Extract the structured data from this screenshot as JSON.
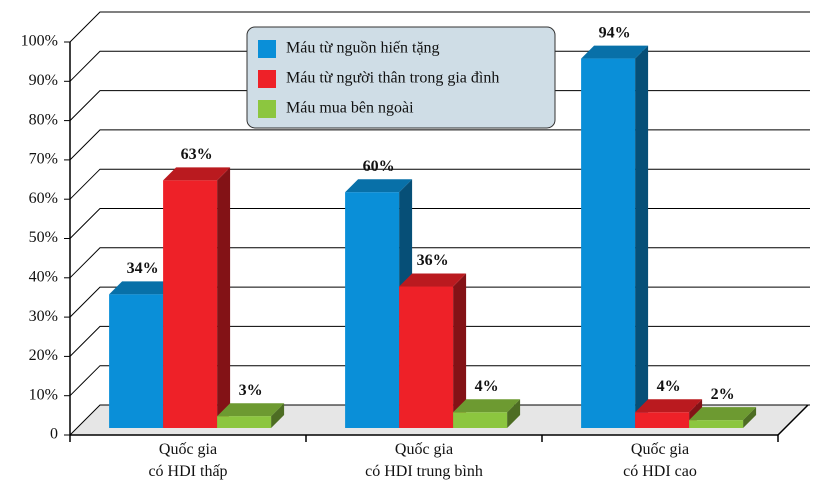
{
  "chart_data": {
    "type": "bar3d",
    "categories": [
      "Quốc gia\ncó HDI thấp",
      "Quốc gia\ncó HDI trung bình",
      "Quốc gia\ncó HDI cao"
    ],
    "series": [
      {
        "name": "Máu từ nguồn hiến tặng",
        "color": "#0a8fd8",
        "values": [
          34,
          60,
          94
        ],
        "value_labels": [
          "34%",
          "60%",
          "94%"
        ]
      },
      {
        "name": "Máu từ người thân trong gia đình",
        "color": "#ee2128",
        "values": [
          63,
          36,
          4
        ],
        "value_labels": [
          "63%",
          "36%",
          "4%"
        ]
      },
      {
        "name": "Máu mua bên ngoài",
        "color": "#8cc63f",
        "values": [
          3,
          4,
          2
        ],
        "value_labels": [
          "3%",
          "4%",
          "2%"
        ]
      }
    ],
    "ylim": [
      0,
      100
    ],
    "yticks": [
      0,
      {
        "value": 10,
        "label": "10%"
      },
      {
        "value": 20,
        "label": "20%"
      },
      {
        "value": 30,
        "label": "30%"
      },
      {
        "value": 40,
        "label": "40%"
      },
      {
        "value": 50,
        "label": "50%"
      },
      {
        "value": 60,
        "label": "60%"
      },
      {
        "value": 70,
        "label": "70%"
      },
      {
        "value": 80,
        "label": "80%"
      },
      {
        "value": 90,
        "label": "90%"
      },
      {
        "value": 100,
        "label": "100%"
      }
    ],
    "grid": true,
    "legend": "top"
  }
}
